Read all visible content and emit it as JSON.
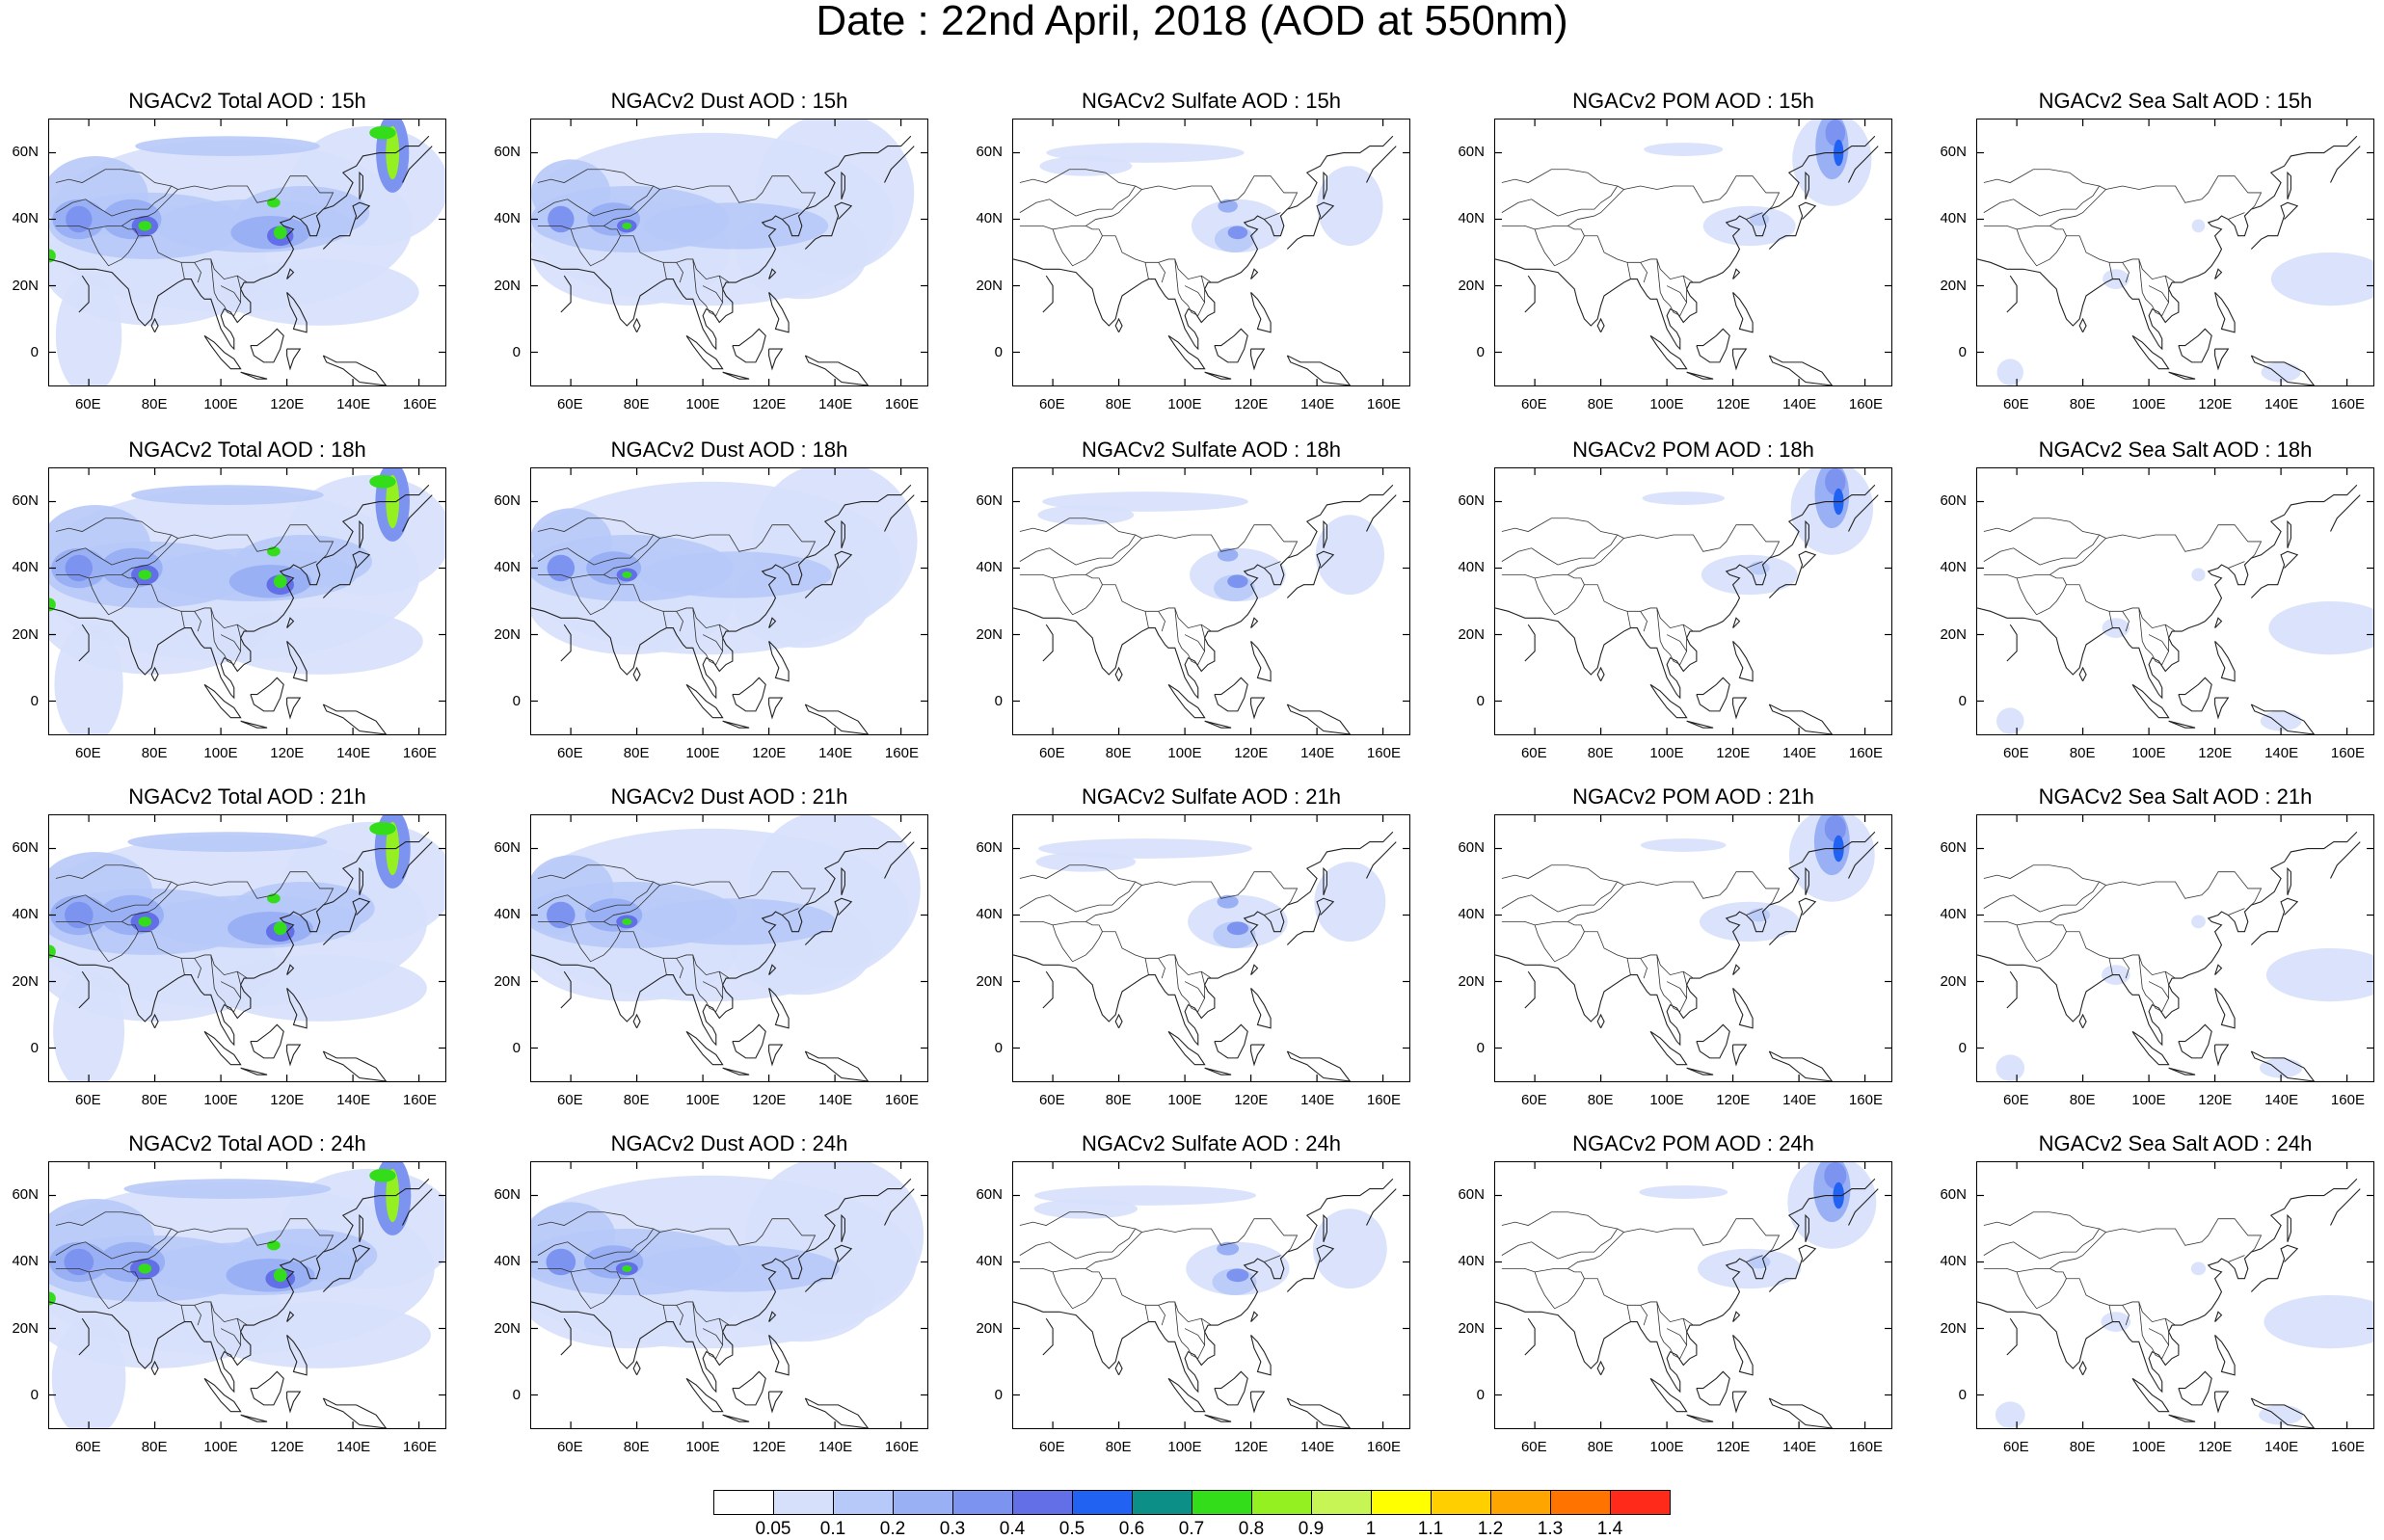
{
  "title": "Date : 22nd April, 2018 (AOD at 550nm)",
  "lat_labels": [
    "60N",
    "40N",
    "20N",
    "0"
  ],
  "lon_labels": [
    "60E",
    "80E",
    "100E",
    "120E",
    "140E",
    "160E"
  ],
  "panel_titles": [
    [
      "NGACv2 Total AOD : 15h",
      "NGACv2 Dust AOD : 15h",
      "NGACv2 Sulfate AOD : 15h",
      "NGACv2 POM AOD : 15h",
      "NGACv2 Sea Salt AOD : 15h"
    ],
    [
      "NGACv2 Total AOD : 18h",
      "NGACv2 Dust AOD : 18h",
      "NGACv2 Sulfate AOD : 18h",
      "NGACv2 POM AOD : 18h",
      "NGACv2 Sea Salt AOD : 18h"
    ],
    [
      "NGACv2 Total AOD : 21h",
      "NGACv2 Dust AOD : 21h",
      "NGACv2 Sulfate AOD : 21h",
      "NGACv2 POM AOD : 21h",
      "NGACv2 Sea Salt AOD : 21h"
    ],
    [
      "NGACv2 Total AOD : 24h",
      "NGACv2 Dust AOD : 24h",
      "NGACv2 Sulfate AOD : 24h",
      "NGACv2 POM AOD : 24h",
      "NGACv2 Sea Salt  AOD : 24h"
    ]
  ],
  "colorbar": {
    "labels": [
      "0.05",
      "0.1",
      "0.2",
      "0.3",
      "0.4",
      "0.5",
      "0.6",
      "0.7",
      "0.8",
      "0.9",
      "1",
      "1.1",
      "1.2",
      "1.3",
      "1.4"
    ],
    "colors": [
      "#ffffff",
      "#d6e0fb",
      "#b7c9f8",
      "#99b0f5",
      "#7d93f0",
      "#626fe6",
      "#2262f2",
      "#0b8f86",
      "#33dd1a",
      "#94f020",
      "#c7f555",
      "#ffff00",
      "#ffcf00",
      "#ffa500",
      "#ff7300",
      "#ff2a1a"
    ]
  }
}
